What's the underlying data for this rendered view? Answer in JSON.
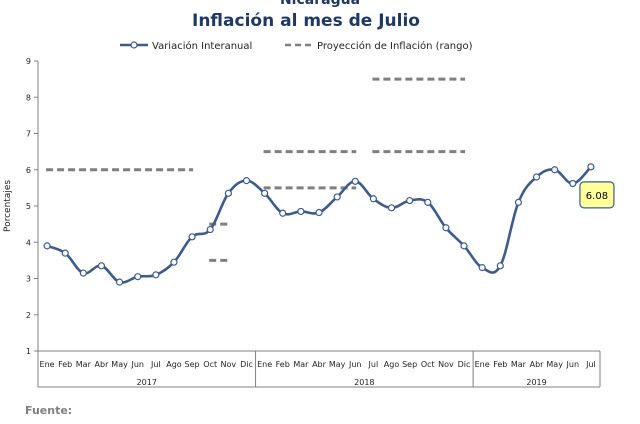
{
  "header": {
    "supertitle": "Nicaragua",
    "title": "Inflación al mes de Julio"
  },
  "footer": {
    "source_label": "Fuente:"
  },
  "chart_data": {
    "type": "line",
    "ylabel": "Porcentajes",
    "xlabel": "",
    "ylim": [
      1,
      9
    ],
    "yticks": [
      1,
      2,
      3,
      4,
      5,
      6,
      7,
      8,
      9
    ],
    "grid": false,
    "legend_position": "top",
    "categories": [
      "Ene",
      "Feb",
      "Mar",
      "Abr",
      "May",
      "Jun",
      "Jul",
      "Ago",
      "Sep",
      "Oct",
      "Nov",
      "Dic",
      "Ene",
      "Feb",
      "Mar",
      "Abr",
      "May",
      "Jun",
      "Jul",
      "Ago",
      "Sep",
      "Oct",
      "Nov",
      "Dic",
      "Ene",
      "Feb",
      "Mar",
      "Abr",
      "May",
      "Jun",
      "Jul"
    ],
    "year_groups": [
      {
        "label": "2017",
        "count": 12
      },
      {
        "label": "2018",
        "count": 12
      },
      {
        "label": "2019",
        "count": 7
      }
    ],
    "series": [
      {
        "name": "Variación Interanual",
        "color": "#3d5b8c",
        "style": "line-markers",
        "values": [
          3.9,
          3.7,
          3.15,
          3.35,
          2.9,
          3.05,
          3.1,
          3.45,
          4.15,
          4.35,
          5.35,
          5.7,
          5.35,
          4.8,
          4.85,
          4.82,
          5.25,
          5.68,
          5.2,
          4.95,
          5.15,
          5.1,
          4.4,
          3.9,
          3.3,
          3.35,
          5.1,
          5.8,
          6.0,
          5.62,
          6.08
        ]
      },
      {
        "name": "Proyección de Inflación (rango)",
        "color": "#7f7f7f",
        "style": "dashed",
        "segments": [
          {
            "from": 0,
            "to": 8,
            "y": 6.0
          },
          {
            "from": 9,
            "to": 10,
            "y": 4.5
          },
          {
            "from": 9,
            "to": 10,
            "y": 3.5
          },
          {
            "from": 12,
            "to": 17,
            "y": 6.5
          },
          {
            "from": 12,
            "to": 17,
            "y": 5.5
          },
          {
            "from": 18,
            "to": 23,
            "y": 8.5
          },
          {
            "from": 18,
            "to": 23,
            "y": 6.5
          }
        ]
      }
    ],
    "annotations": [
      {
        "text": "6.08",
        "point_index": 30,
        "color": "#ffff99"
      }
    ]
  }
}
